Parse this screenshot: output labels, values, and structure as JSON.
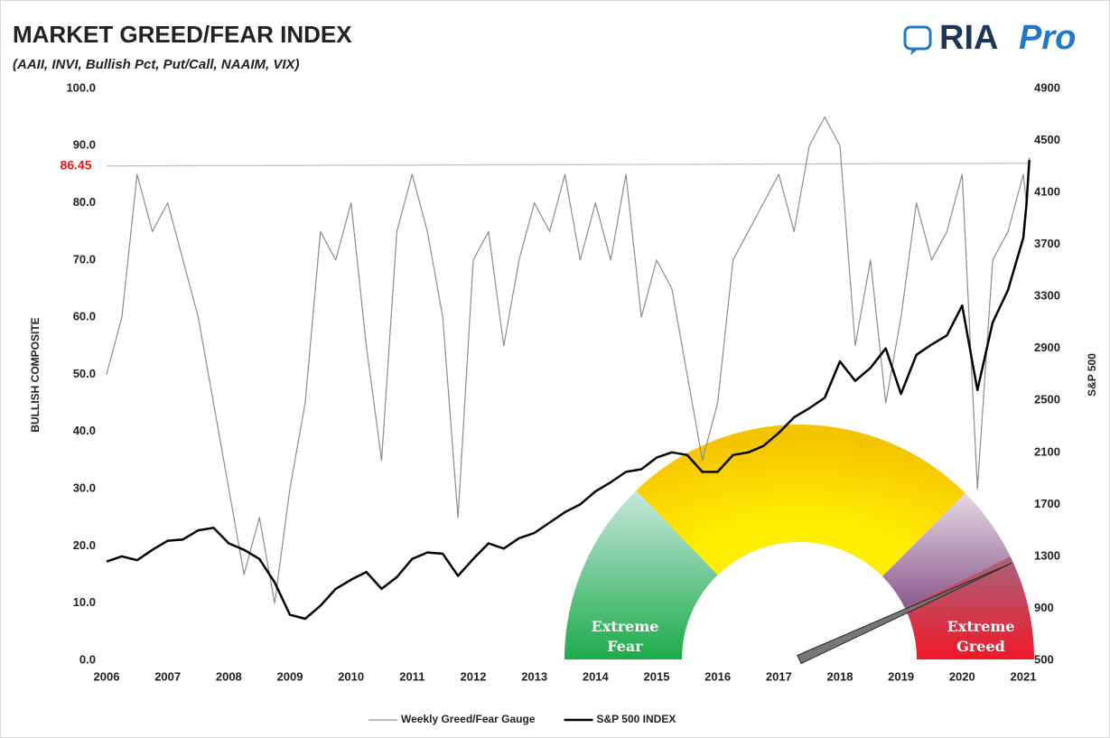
{
  "chart_data": {
    "type": "line",
    "title": "MARKET GREED/FEAR INDEX",
    "subtitle": "(AAII, INVI, Bullish Pct, Put/Call, NAAIM, VIX)",
    "y_label": "BULLISH COMPOSITE",
    "y2_label": "S&P 500",
    "x": [
      2006,
      2006.25,
      2006.5,
      2006.75,
      2007,
      2007.25,
      2007.5,
      2007.75,
      2008,
      2008.25,
      2008.5,
      2008.75,
      2009,
      2009.25,
      2009.5,
      2009.75,
      2010,
      2010.25,
      2010.5,
      2010.75,
      2011,
      2011.25,
      2011.5,
      2011.75,
      2012,
      2012.25,
      2012.5,
      2012.75,
      2013,
      2013.25,
      2013.5,
      2013.75,
      2014,
      2014.25,
      2014.5,
      2014.75,
      2015,
      2015.25,
      2015.5,
      2015.75,
      2016,
      2016.25,
      2016.5,
      2016.75,
      2017,
      2017.25,
      2017.5,
      2017.75,
      2018,
      2018.25,
      2018.5,
      2018.75,
      2019,
      2019.25,
      2019.5,
      2019.75,
      2020,
      2020.25,
      2020.5,
      2020.75,
      2021,
      2021.05,
      2021.1
    ],
    "series": [
      {
        "name": "Weekly Greed/Fear Gauge",
        "color": "#8c8c8c",
        "values": [
          50,
          60,
          85,
          75,
          80,
          70,
          60,
          45,
          30,
          15,
          25,
          10,
          30,
          45,
          75,
          70,
          80,
          55,
          35,
          75,
          85,
          75,
          60,
          25,
          70,
          75,
          55,
          70,
          80,
          75,
          85,
          70,
          80,
          70,
          85,
          60,
          70,
          65,
          50,
          35,
          45,
          70,
          75,
          80,
          85,
          75,
          90,
          95,
          90,
          55,
          70,
          45,
          60,
          80,
          70,
          75,
          85,
          30,
          70,
          75,
          85,
          80,
          88
        ]
      },
      {
        "name": "S&P 500 INDEX",
        "color": "#000000",
        "axis": "y2",
        "values": [
          1260,
          1300,
          1270,
          1350,
          1420,
          1430,
          1500,
          1520,
          1400,
          1350,
          1280,
          1100,
          850,
          820,
          920,
          1050,
          1120,
          1180,
          1050,
          1140,
          1280,
          1330,
          1320,
          1150,
          1280,
          1400,
          1360,
          1440,
          1480,
          1560,
          1640,
          1700,
          1800,
          1870,
          1950,
          1970,
          2060,
          2100,
          2080,
          1950,
          1950,
          2080,
          2100,
          2150,
          2250,
          2370,
          2440,
          2520,
          2800,
          2650,
          2750,
          2900,
          2550,
          2850,
          2930,
          3000,
          3230,
          2580,
          3100,
          3350,
          3750,
          4000,
          4350
        ]
      }
    ],
    "xlim": [
      2006,
      2021.2
    ],
    "xticks": [
      2006,
      2007,
      2008,
      2009,
      2010,
      2011,
      2012,
      2013,
      2014,
      2015,
      2016,
      2017,
      2018,
      2019,
      2020,
      2021
    ],
    "ylim": [
      0,
      100
    ],
    "yticks": [
      {
        "value": 0,
        "label": "0.0"
      },
      {
        "value": 10,
        "label": "10.0"
      },
      {
        "value": 20,
        "label": "20.0"
      },
      {
        "value": 30,
        "label": "30.0"
      },
      {
        "value": 40,
        "label": "40.0"
      },
      {
        "value": 50,
        "label": "50.0"
      },
      {
        "value": 60,
        "label": "60.0"
      },
      {
        "value": 70,
        "label": "70.0"
      },
      {
        "value": 80,
        "label": "80.0"
      },
      {
        "value": 90,
        "label": "90.0"
      },
      {
        "value": 100,
        "label": "100.0"
      }
    ],
    "y2lim": [
      500,
      4900
    ],
    "y2ticks": [
      500,
      900,
      1300,
      1700,
      2100,
      2500,
      2900,
      3300,
      3700,
      4100,
      4500,
      4900
    ],
    "reference_line": 86.45,
    "gauge_labels": {
      "fear": "Extreme Fear",
      "greed": "Extreme Greed"
    },
    "legend": "bottom"
  },
  "logo": {
    "text": "RIA",
    "accent": "Pro"
  }
}
